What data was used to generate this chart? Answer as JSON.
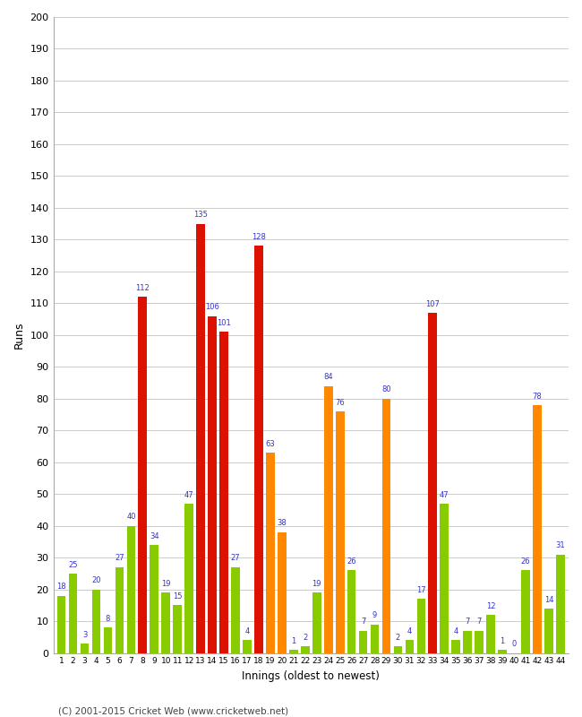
{
  "innings": [
    1,
    2,
    3,
    4,
    5,
    6,
    7,
    8,
    9,
    10,
    11,
    12,
    13,
    14,
    15,
    16,
    17,
    18,
    19,
    20,
    21,
    22,
    23,
    24,
    25,
    26,
    27,
    28,
    29,
    30,
    31,
    32,
    33,
    34,
    35,
    36,
    37,
    38,
    39,
    40,
    41,
    42,
    43,
    44
  ],
  "bar_heights": [
    18,
    25,
    3,
    20,
    8,
    27,
    40,
    112,
    34,
    19,
    15,
    47,
    135,
    106,
    101,
    27,
    4,
    128,
    63,
    38,
    1,
    2,
    19,
    84,
    76,
    26,
    7,
    9,
    80,
    2,
    4,
    17,
    107,
    47,
    4,
    7,
    7,
    12,
    1,
    0,
    26,
    78,
    14,
    31
  ],
  "bar_labels": [
    18,
    25,
    3,
    20,
    8,
    27,
    40,
    112,
    34,
    19,
    15,
    47,
    135,
    106,
    101,
    27,
    4,
    128,
    63,
    38,
    1,
    2,
    19,
    84,
    76,
    26,
    7,
    9,
    80,
    2,
    4,
    17,
    107,
    47,
    4,
    7,
    7,
    12,
    1,
    0,
    26,
    78,
    14,
    31
  ],
  "bar_color_names": [
    "green",
    "green",
    "green",
    "green",
    "green",
    "green",
    "green",
    "red",
    "green",
    "green",
    "green",
    "green",
    "red",
    "red",
    "red",
    "green",
    "green",
    "red",
    "orange",
    "orange",
    "green",
    "green",
    "green",
    "orange",
    "orange",
    "green",
    "green",
    "green",
    "orange",
    "green",
    "green",
    "green",
    "red",
    "green",
    "green",
    "green",
    "green",
    "green",
    "green",
    "green",
    "green",
    "orange",
    "green",
    "green"
  ],
  "color_map": {
    "green": "#88cc00",
    "red": "#dd1100",
    "orange": "#ff8800"
  },
  "ylabel": "Runs",
  "xlabel": "Innings (oldest to newest)",
  "ylim": [
    0,
    200
  ],
  "label_color": "#3333cc",
  "footer": "(C) 2001-2015 Cricket Web (www.cricketweb.net)"
}
